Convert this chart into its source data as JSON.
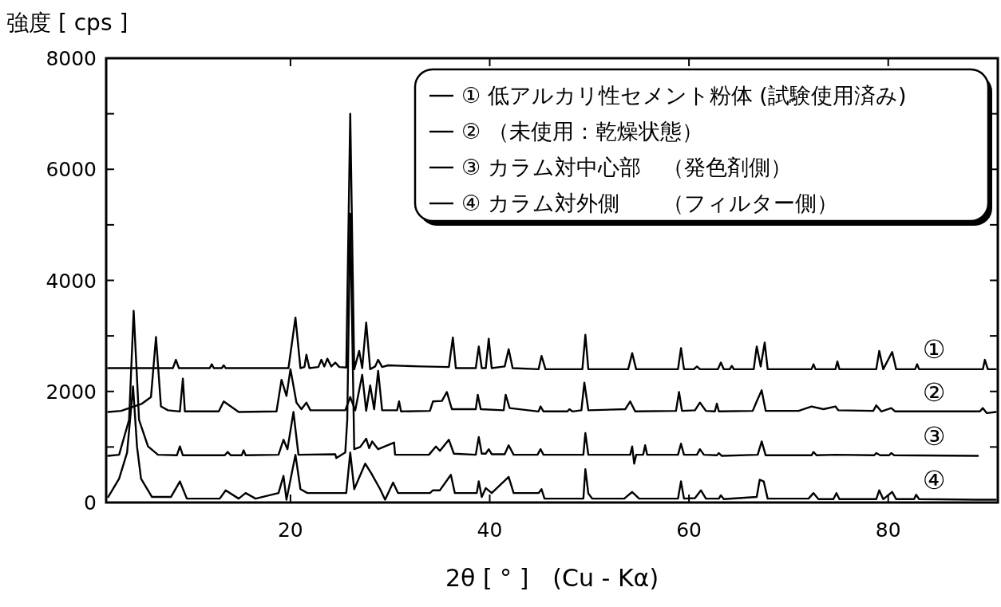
{
  "chart_data": {
    "type": "line",
    "xlabel": "2θ [ ° ]　(Cu - Kα)",
    "ylabel": "強度 [ cps ]",
    "xlim": [
      1.5,
      91
    ],
    "ylim": [
      0,
      8000
    ],
    "xticks": [
      20,
      40,
      60,
      80
    ],
    "yticks": [
      0,
      {
        "value": 1000,
        "label": null
      },
      2000,
      {
        "value": 3000,
        "label": null
      },
      4000,
      {
        "value": 5000,
        "label": null
      },
      6000,
      {
        "value": 7000,
        "label": null
      },
      8000
    ],
    "legend": "top right",
    "line_style": "solid",
    "annotations": [
      "①",
      "②",
      "③",
      "④"
    ],
    "series": [
      {
        "name": "①  低アルカリ性セメント粉体 (試験使用済み)",
        "color": "#000000",
        "x": [
          1.7,
          8.2,
          8.5,
          8.8,
          11.9,
          12.1,
          12.3,
          13.1,
          13.3,
          13.5,
          19.8,
          20.5,
          21.0,
          21.4,
          21.6,
          21.9,
          22.8,
          23.1,
          23.4,
          23.7,
          24.1,
          24.5,
          24.9,
          25.6,
          26.0,
          26.4,
          26.9,
          27.2,
          27.6,
          28.0,
          28.5,
          28.8,
          29.2,
          29.8,
          33.0,
          35.9,
          36.3,
          36.6,
          38.6,
          38.9,
          39.2,
          39.6,
          39.9,
          40.2,
          41.5,
          41.9,
          42.3,
          44.9,
          45.2,
          45.6,
          49.3,
          49.6,
          49.9,
          53.9,
          54.3,
          54.7,
          58.9,
          59.2,
          59.5,
          60.5,
          60.8,
          61.1,
          62.9,
          63.2,
          63.5,
          64.1,
          64.3,
          64.5,
          66.5,
          66.8,
          67.2,
          67.6,
          67.9,
          72.3,
          72.5,
          72.7,
          74.7,
          74.9,
          75.1,
          78.8,
          79.1,
          79.5,
          80.4,
          80.8,
          82.7,
          82.9,
          83.1,
          89.5,
          89.7,
          90.0,
          90.8
        ],
        "values": [
          2420,
          2420,
          2570,
          2420,
          2420,
          2490,
          2420,
          2420,
          2470,
          2420,
          2420,
          3330,
          2420,
          2440,
          2660,
          2420,
          2440,
          2570,
          2450,
          2590,
          2450,
          2520,
          2440,
          2430,
          7000,
          2400,
          2730,
          2420,
          3240,
          2400,
          2450,
          2570,
          2440,
          2470,
          2450,
          2440,
          2970,
          2420,
          2420,
          2810,
          2420,
          2420,
          2950,
          2420,
          2450,
          2760,
          2420,
          2400,
          2640,
          2400,
          2400,
          3020,
          2400,
          2400,
          2690,
          2400,
          2400,
          2780,
          2400,
          2400,
          2450,
          2400,
          2400,
          2520,
          2400,
          2400,
          2460,
          2400,
          2400,
          2810,
          2450,
          2880,
          2400,
          2400,
          2490,
          2400,
          2400,
          2540,
          2400,
          2400,
          2730,
          2400,
          2710,
          2400,
          2400,
          2490,
          2400,
          2400,
          2570,
          2400,
          2400
        ]
      },
      {
        "name": "②  （未使用：乾燥状態）",
        "color": "#000000",
        "x": [
          1.7,
          3.0,
          5.1,
          6.0,
          6.5,
          7.0,
          7.7,
          8.9,
          9.2,
          9.4,
          12.8,
          13.3,
          14.8,
          18.6,
          19.1,
          19.6,
          20.0,
          20.6,
          21.1,
          21.6,
          22.0,
          25.5,
          26.0,
          26.5,
          27.2,
          27.6,
          28.0,
          28.4,
          28.8,
          29.2,
          30.7,
          30.9,
          31.1,
          34.0,
          34.3,
          35.2,
          35.7,
          36.2,
          38.6,
          38.8,
          39.1,
          41.4,
          41.6,
          42.0,
          44.9,
          45.1,
          45.4,
          47.8,
          48.0,
          48.3,
          49.2,
          49.5,
          49.9,
          53.6,
          54.1,
          54.6,
          58.7,
          59.0,
          59.3,
          60.6,
          61.1,
          61.7,
          62.6,
          62.8,
          63.0,
          66.4,
          66.8,
          67.3,
          67.7,
          71.0,
          72.3,
          73.5,
          74.7,
          75.0,
          78.5,
          78.8,
          79.3,
          80.3,
          80.7,
          89.2,
          89.5,
          89.9,
          90.8
        ],
        "values": [
          1630,
          1650,
          1780,
          1900,
          2980,
          1730,
          1660,
          1640,
          2230,
          1640,
          1640,
          1820,
          1630,
          1640,
          2210,
          1920,
          2400,
          1800,
          1680,
          1800,
          1660,
          1660,
          1900,
          1660,
          2300,
          1650,
          2110,
          1680,
          2370,
          1660,
          1660,
          1820,
          1640,
          1650,
          1820,
          1830,
          1990,
          1680,
          1680,
          1940,
          1680,
          1660,
          1940,
          1700,
          1640,
          1730,
          1640,
          1640,
          1680,
          1640,
          1660,
          2160,
          1660,
          1680,
          1820,
          1640,
          1650,
          1990,
          1650,
          1660,
          1800,
          1650,
          1640,
          1780,
          1640,
          1650,
          1820,
          2020,
          1650,
          1650,
          1730,
          1680,
          1730,
          1660,
          1650,
          1750,
          1640,
          1700,
          1640,
          1640,
          1700,
          1610,
          1630
        ]
      },
      {
        "name": "③  カラム対中心部　（発色剤側）",
        "color": "#000000",
        "x": [
          1.7,
          2.8,
          3.8,
          4.26,
          4.8,
          5.7,
          6.7,
          8.6,
          8.9,
          9.2,
          13.4,
          13.7,
          14.0,
          15.1,
          15.3,
          15.5,
          18.8,
          19.3,
          19.7,
          20.3,
          20.8,
          24.5,
          24.6,
          25.5,
          25.7,
          26.0,
          26.4,
          27.0,
          27.6,
          27.9,
          28.2,
          28.8,
          30.4,
          30.5,
          33.9,
          34.6,
          35.0,
          35.9,
          36.4,
          38.6,
          38.9,
          39.2,
          39.6,
          39.9,
          40.2,
          41.5,
          41.9,
          42.4,
          44.8,
          45.1,
          45.4,
          49.4,
          49.6,
          49.9,
          54.1,
          54.3,
          54.5,
          54.7,
          55.4,
          55.6,
          55.8,
          58.9,
          59.2,
          59.5,
          60.8,
          61.1,
          61.5,
          62.8,
          63.0,
          63.3,
          66.9,
          67.3,
          67.7,
          72.3,
          72.5,
          72.8,
          74.7,
          78.6,
          78.8,
          79.2,
          80.1,
          80.3,
          80.6,
          89.0
        ],
        "values": [
          840,
          860,
          1490,
          3450,
          1490,
          1010,
          860,
          850,
          1010,
          850,
          850,
          910,
          850,
          850,
          940,
          850,
          860,
          1130,
          960,
          1630,
          860,
          870,
          800,
          900,
          1490,
          5200,
          960,
          1000,
          1150,
          980,
          1100,
          960,
          1080,
          860,
          860,
          1010,
          930,
          1130,
          880,
          860,
          1180,
          880,
          880,
          960,
          870,
          870,
          1030,
          860,
          860,
          960,
          860,
          860,
          1250,
          860,
          860,
          1010,
          700,
          860,
          860,
          1030,
          860,
          860,
          1060,
          860,
          860,
          960,
          860,
          850,
          890,
          840,
          860,
          1100,
          850,
          850,
          910,
          850,
          860,
          850,
          890,
          850,
          850,
          890,
          850,
          840
        ]
      },
      {
        "name": "④  カラム対外側　　（フィルター側）",
        "color": "#000000",
        "x": [
          1.7,
          2.8,
          3.6,
          4.2,
          4.6,
          5.0,
          6.1,
          8.0,
          8.9,
          9.6,
          12.9,
          13.5,
          14.8,
          15.5,
          16.5,
          18.8,
          19.3,
          19.6,
          20.5,
          21.0,
          21.7,
          25.6,
          26.0,
          26.4,
          27.5,
          28.1,
          29.0,
          29.5,
          30.3,
          30.8,
          34.0,
          34.3,
          35.0,
          36.1,
          36.5,
          38.7,
          38.9,
          39.2,
          39.6,
          40.2,
          41.9,
          42.4,
          44.9,
          45.2,
          45.5,
          49.4,
          49.6,
          49.9,
          50.3,
          53.5,
          54.3,
          55.0,
          58.9,
          59.2,
          59.5,
          60.6,
          61.2,
          61.7,
          63.0,
          63.2,
          63.5,
          66.8,
          67.1,
          67.5,
          67.9,
          72.0,
          72.5,
          73.0,
          74.5,
          74.8,
          75.1,
          78.8,
          79.1,
          79.5,
          80.4,
          80.8,
          82.6,
          82.8,
          83.1,
          88.9,
          90.8
        ],
        "values": [
          100,
          430,
          900,
          2090,
          1000,
          430,
          100,
          100,
          380,
          70,
          70,
          220,
          70,
          170,
          70,
          170,
          480,
          50,
          860,
          240,
          170,
          170,
          900,
          240,
          700,
          530,
          240,
          50,
          360,
          170,
          170,
          220,
          220,
          500,
          170,
          170,
          380,
          100,
          260,
          170,
          460,
          170,
          170,
          240,
          70,
          70,
          600,
          160,
          70,
          70,
          190,
          70,
          70,
          380,
          70,
          80,
          220,
          70,
          70,
          130,
          60,
          100,
          410,
          380,
          70,
          70,
          170,
          60,
          60,
          170,
          60,
          60,
          220,
          60,
          190,
          60,
          60,
          140,
          60,
          50,
          50
        ]
      }
    ]
  }
}
